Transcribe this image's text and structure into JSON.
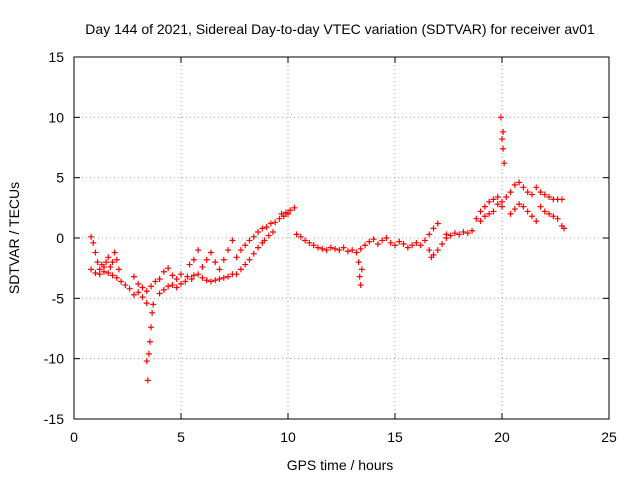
{
  "chart_data": {
    "type": "scatter",
    "title": "Day 144 of 2021, Sidereal Day-to-day VTEC variation (SDTVAR) for receiver av01",
    "xlabel": "GPS time / hours",
    "ylabel": "SDTVAR / TECUs",
    "xlim": [
      0,
      25
    ],
    "ylim": [
      -15,
      15
    ],
    "xticks": [
      0,
      5,
      10,
      15,
      20,
      25
    ],
    "yticks": [
      -15,
      -10,
      -5,
      0,
      5,
      10,
      15
    ],
    "grid": true,
    "marker": "+",
    "marker_color": "#ff0000",
    "series": [
      {
        "name": "SDTVAR",
        "points": [
          [
            0.8,
            0.1
          ],
          [
            0.9,
            -0.4
          ],
          [
            1.0,
            -1.2
          ],
          [
            1.1,
            -2.0
          ],
          [
            1.2,
            -2.6
          ],
          [
            1.3,
            -2.2
          ],
          [
            1.4,
            -2.8
          ],
          [
            1.5,
            -2.0
          ],
          [
            1.6,
            -1.6
          ],
          [
            1.7,
            -2.4
          ],
          [
            1.8,
            -2.0
          ],
          [
            1.9,
            -1.2
          ],
          [
            2.0,
            -1.8
          ],
          [
            2.1,
            -2.6
          ],
          [
            0.8,
            -2.6
          ],
          [
            1.0,
            -2.9
          ],
          [
            1.2,
            -3.0
          ],
          [
            1.4,
            -2.4
          ],
          [
            1.6,
            -2.9
          ],
          [
            1.8,
            -3.1
          ],
          [
            2.0,
            -3.3
          ],
          [
            2.2,
            -3.6
          ],
          [
            2.4,
            -3.9
          ],
          [
            2.6,
            -4.2
          ],
          [
            2.8,
            -4.7
          ],
          [
            3.0,
            -4.5
          ],
          [
            3.2,
            -4.9
          ],
          [
            3.4,
            -5.4
          ],
          [
            2.8,
            -3.2
          ],
          [
            3.0,
            -3.8
          ],
          [
            3.2,
            -4.1
          ],
          [
            3.4,
            -4.4
          ],
          [
            3.6,
            -4.0
          ],
          [
            3.8,
            -3.6
          ],
          [
            4.0,
            -3.4
          ],
          [
            3.4,
            -10.2
          ],
          [
            3.45,
            -11.8
          ],
          [
            3.5,
            -9.6
          ],
          [
            3.55,
            -8.6
          ],
          [
            3.6,
            -7.4
          ],
          [
            3.65,
            -6.2
          ],
          [
            3.7,
            -5.5
          ],
          [
            4.0,
            -4.6
          ],
          [
            4.2,
            -4.3
          ],
          [
            4.4,
            -4.0
          ],
          [
            4.6,
            -3.9
          ],
          [
            4.8,
            -4.1
          ],
          [
            5.0,
            -3.8
          ],
          [
            5.2,
            -3.6
          ],
          [
            4.2,
            -2.8
          ],
          [
            4.4,
            -2.5
          ],
          [
            4.6,
            -3.1
          ],
          [
            4.8,
            -3.4
          ],
          [
            5.0,
            -3.0
          ],
          [
            5.3,
            -3.2
          ],
          [
            5.5,
            -3.4
          ],
          [
            5.6,
            -3.1
          ],
          [
            5.8,
            -3.0
          ],
          [
            6.0,
            -3.3
          ],
          [
            6.2,
            -3.5
          ],
          [
            6.4,
            -3.6
          ],
          [
            6.6,
            -3.5
          ],
          [
            6.8,
            -3.4
          ],
          [
            5.4,
            -2.2
          ],
          [
            5.6,
            -1.8
          ],
          [
            5.8,
            -1.0
          ],
          [
            6.0,
            -2.4
          ],
          [
            6.2,
            -1.8
          ],
          [
            6.4,
            -1.2
          ],
          [
            6.6,
            -2.0
          ],
          [
            6.8,
            -2.6
          ],
          [
            7.0,
            -1.8
          ],
          [
            7.2,
            -1.0
          ],
          [
            7.4,
            -0.2
          ],
          [
            7.0,
            -3.3
          ],
          [
            7.2,
            -3.2
          ],
          [
            7.4,
            -3.0
          ],
          [
            7.6,
            -3.0
          ],
          [
            7.8,
            -2.6
          ],
          [
            8.0,
            -2.2
          ],
          [
            8.2,
            -1.8
          ],
          [
            8.4,
            -1.3
          ],
          [
            8.6,
            -0.8
          ],
          [
            8.8,
            -0.4
          ],
          [
            7.6,
            -1.6
          ],
          [
            7.8,
            -1.0
          ],
          [
            8.0,
            -0.6
          ],
          [
            8.2,
            -0.2
          ],
          [
            8.4,
            0.1
          ],
          [
            8.6,
            0.5
          ],
          [
            8.8,
            0.8
          ],
          [
            9.0,
            0.9
          ],
          [
            9.2,
            1.2
          ],
          [
            9.4,
            1.3
          ],
          [
            8.9,
            -0.2
          ],
          [
            9.1,
            0.2
          ],
          [
            9.3,
            0.5
          ],
          [
            9.6,
            1.6
          ],
          [
            9.7,
            2.0
          ],
          [
            9.8,
            1.8
          ],
          [
            9.9,
            2.1
          ],
          [
            10.0,
            2.0
          ],
          [
            10.1,
            2.3
          ],
          [
            10.3,
            2.5
          ],
          [
            10.4,
            0.3
          ],
          [
            10.6,
            0.1
          ],
          [
            10.8,
            -0.2
          ],
          [
            11.0,
            -0.4
          ],
          [
            11.2,
            -0.6
          ],
          [
            11.4,
            -0.8
          ],
          [
            11.6,
            -0.9
          ],
          [
            11.8,
            -1.0
          ],
          [
            12.0,
            -0.8
          ],
          [
            12.2,
            -0.9
          ],
          [
            12.4,
            -1.0
          ],
          [
            12.6,
            -0.8
          ],
          [
            12.8,
            -1.1
          ],
          [
            13.0,
            -1.0
          ],
          [
            13.2,
            -1.2
          ],
          [
            13.4,
            -0.9
          ],
          [
            13.6,
            -0.6
          ],
          [
            13.8,
            -0.3
          ],
          [
            14.0,
            -0.1
          ],
          [
            14.2,
            -0.5
          ],
          [
            13.3,
            -2.0
          ],
          [
            13.35,
            -3.2
          ],
          [
            13.4,
            -3.9
          ],
          [
            13.45,
            -2.6
          ],
          [
            14.4,
            -0.2
          ],
          [
            14.6,
            0.0
          ],
          [
            14.8,
            -0.4
          ],
          [
            15.0,
            -0.6
          ],
          [
            15.2,
            -0.3
          ],
          [
            15.4,
            -0.5
          ],
          [
            15.6,
            -0.8
          ],
          [
            15.8,
            -0.6
          ],
          [
            16.0,
            -0.4
          ],
          [
            16.2,
            -0.6
          ],
          [
            16.4,
            -0.2
          ],
          [
            16.6,
            0.3
          ],
          [
            16.8,
            0.8
          ],
          [
            17.0,
            1.2
          ],
          [
            16.6,
            -1.0
          ],
          [
            16.7,
            -1.6
          ],
          [
            16.8,
            -1.4
          ],
          [
            17.0,
            -1.0
          ],
          [
            17.2,
            -0.5
          ],
          [
            17.4,
            0.0
          ],
          [
            17.4,
            0.3
          ],
          [
            17.6,
            0.2
          ],
          [
            17.8,
            0.4
          ],
          [
            18.0,
            0.3
          ],
          [
            18.2,
            0.5
          ],
          [
            18.4,
            0.4
          ],
          [
            18.6,
            0.6
          ],
          [
            18.8,
            1.6
          ],
          [
            19.0,
            2.2
          ],
          [
            19.2,
            2.6
          ],
          [
            19.4,
            3.0
          ],
          [
            19.6,
            3.2
          ],
          [
            19.8,
            3.4
          ],
          [
            20.0,
            3.0
          ],
          [
            19.0,
            1.4
          ],
          [
            19.2,
            1.8
          ],
          [
            19.4,
            2.0
          ],
          [
            19.6,
            2.2
          ],
          [
            19.8,
            2.8
          ],
          [
            20.0,
            2.6
          ],
          [
            19.95,
            10.0
          ],
          [
            20.0,
            8.2
          ],
          [
            20.05,
            7.4
          ],
          [
            20.1,
            6.2
          ],
          [
            20.05,
            8.8
          ],
          [
            20.2,
            3.4
          ],
          [
            20.4,
            3.8
          ],
          [
            20.6,
            4.4
          ],
          [
            20.8,
            4.6
          ],
          [
            21.0,
            4.2
          ],
          [
            21.2,
            3.8
          ],
          [
            21.4,
            3.6
          ],
          [
            20.4,
            2.0
          ],
          [
            20.6,
            2.4
          ],
          [
            20.8,
            2.8
          ],
          [
            21.0,
            2.6
          ],
          [
            21.2,
            2.2
          ],
          [
            21.4,
            1.8
          ],
          [
            21.6,
            1.4
          ],
          [
            21.6,
            4.2
          ],
          [
            21.8,
            3.8
          ],
          [
            22.0,
            3.6
          ],
          [
            22.2,
            3.4
          ],
          [
            22.4,
            3.2
          ],
          [
            22.6,
            3.2
          ],
          [
            22.8,
            3.2
          ],
          [
            21.8,
            2.6
          ],
          [
            22.0,
            2.2
          ],
          [
            22.2,
            2.0
          ],
          [
            22.4,
            1.8
          ],
          [
            22.6,
            1.6
          ],
          [
            22.8,
            1.0
          ],
          [
            22.9,
            0.8
          ]
        ]
      }
    ]
  }
}
